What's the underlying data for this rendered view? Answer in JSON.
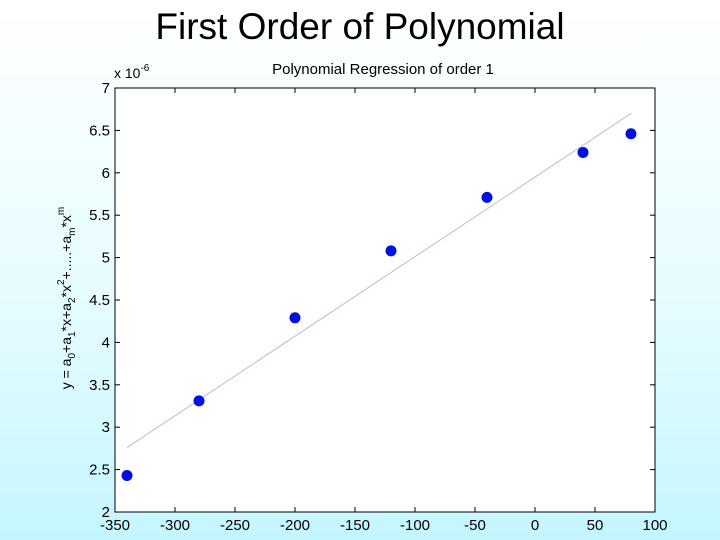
{
  "slide": {
    "title": "First Order of Polynomial"
  },
  "chart_data": {
    "type": "scatter",
    "title": "Polynomial Regression of order 1",
    "xlabel": "",
    "ylabel": "y = a0+a1*x+a2*x2+.....+am*xm",
    "y_scale_label": "x 10-6",
    "xlim": [
      -350,
      100
    ],
    "ylim": [
      2,
      7
    ],
    "x_ticks": [
      -350,
      -300,
      -250,
      -200,
      -150,
      -100,
      -50,
      0,
      50,
      100
    ],
    "y_ticks": [
      2,
      2.5,
      3,
      3.5,
      4,
      4.5,
      5,
      5.5,
      6,
      6.5,
      7
    ],
    "x_tick_labels": [
      "-350",
      "-300",
      "-250",
      "-200",
      "-150",
      "-100",
      "-50",
      "0",
      "50",
      "100"
    ],
    "y_tick_labels": [
      "2",
      "2.5",
      "3",
      "3.5",
      "4",
      "4.5",
      "5",
      "5.5",
      "6",
      "6.5",
      "7"
    ],
    "grid": false,
    "points": {
      "x": [
        -340,
        -280,
        -200,
        -120,
        -40,
        40,
        80
      ],
      "y": [
        2.43,
        3.31,
        4.29,
        5.08,
        5.71,
        6.24,
        6.46
      ]
    },
    "fit_line": {
      "x": [
        -340,
        80
      ],
      "y": [
        2.76,
        6.7
      ]
    },
    "colors": {
      "points": "#0010e0",
      "fit_line": "#b8bcd8",
      "axes": "#000000",
      "plot_background": "#ffffff"
    }
  }
}
